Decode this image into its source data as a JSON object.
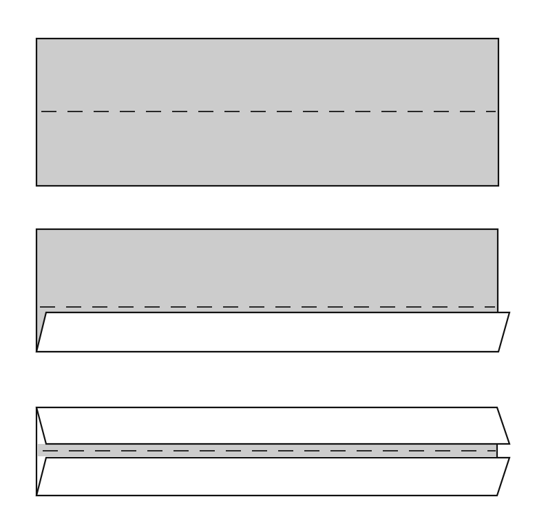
{
  "diagram": {
    "steps": [
      {
        "name": "flat-strip"
      },
      {
        "name": "bottom-flap-folded"
      },
      {
        "name": "both-flaps-folded"
      }
    ],
    "colors": {
      "paper_face": "#cccccc",
      "paper_back": "#ffffff",
      "outline": "#111111"
    }
  }
}
